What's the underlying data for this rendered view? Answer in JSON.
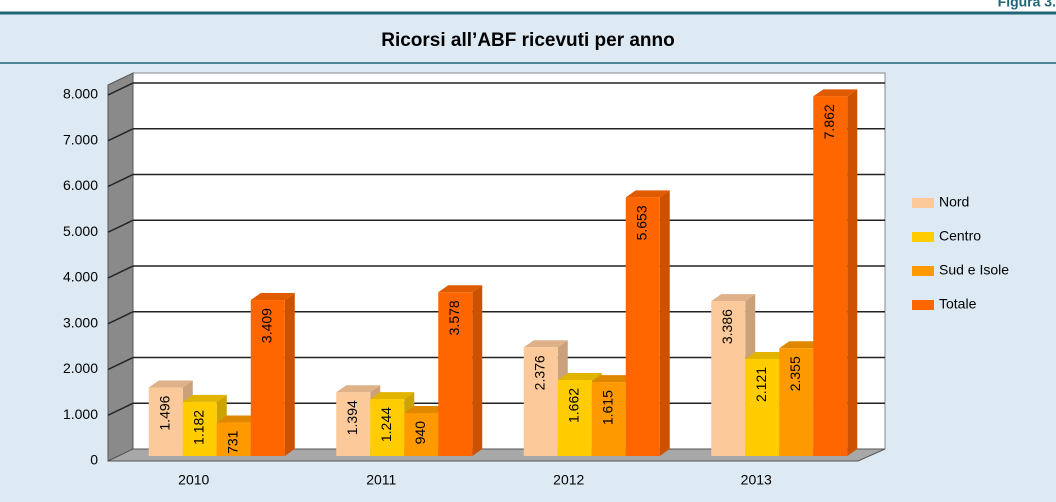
{
  "figure_label": "Figura 3.",
  "chart_data": {
    "type": "bar3d",
    "title": "Ricorsi all’ABF ricevuti per anno",
    "categories": [
      "2010",
      "2011",
      "2012",
      "2013"
    ],
    "series": [
      {
        "name": "Nord",
        "color": "#fcc99a",
        "values": [
          1496,
          1394,
          2376,
          3386
        ],
        "value_labels": [
          "1.496",
          "1.394",
          "2.376",
          "3.386"
        ]
      },
      {
        "name": "Centro",
        "color": "#ffcc00",
        "values": [
          1182,
          1244,
          1662,
          2121
        ],
        "value_labels": [
          "1.182",
          "1.244",
          "1.662",
          "2.121"
        ]
      },
      {
        "name": "Sud e Isole",
        "color": "#ff9900",
        "values": [
          731,
          940,
          1615,
          2355
        ],
        "value_labels": [
          "731",
          "940",
          "1.615",
          "2.355"
        ]
      },
      {
        "name": "Totale",
        "color": "#ff6600",
        "values": [
          3409,
          3578,
          5653,
          7862
        ],
        "value_labels": [
          "3.409",
          "3.578",
          "5.653",
          "7.862"
        ]
      }
    ],
    "ylim": [
      0,
      8000
    ],
    "yticks": [
      0,
      {
        "value": 1000,
        "label": "1.000"
      },
      {
        "value": 2000,
        "label": "2.000"
      },
      {
        "value": 3000,
        "label": "3.000"
      },
      {
        "value": 4000,
        "label": "4.000"
      },
      {
        "value": 5000,
        "label": "5.000"
      },
      {
        "value": 6000,
        "label": "6.000"
      },
      {
        "value": 7000,
        "label": "7.000"
      },
      {
        "value": 8000,
        "label": "8.000"
      }
    ],
    "grid": true,
    "legend": "right"
  }
}
